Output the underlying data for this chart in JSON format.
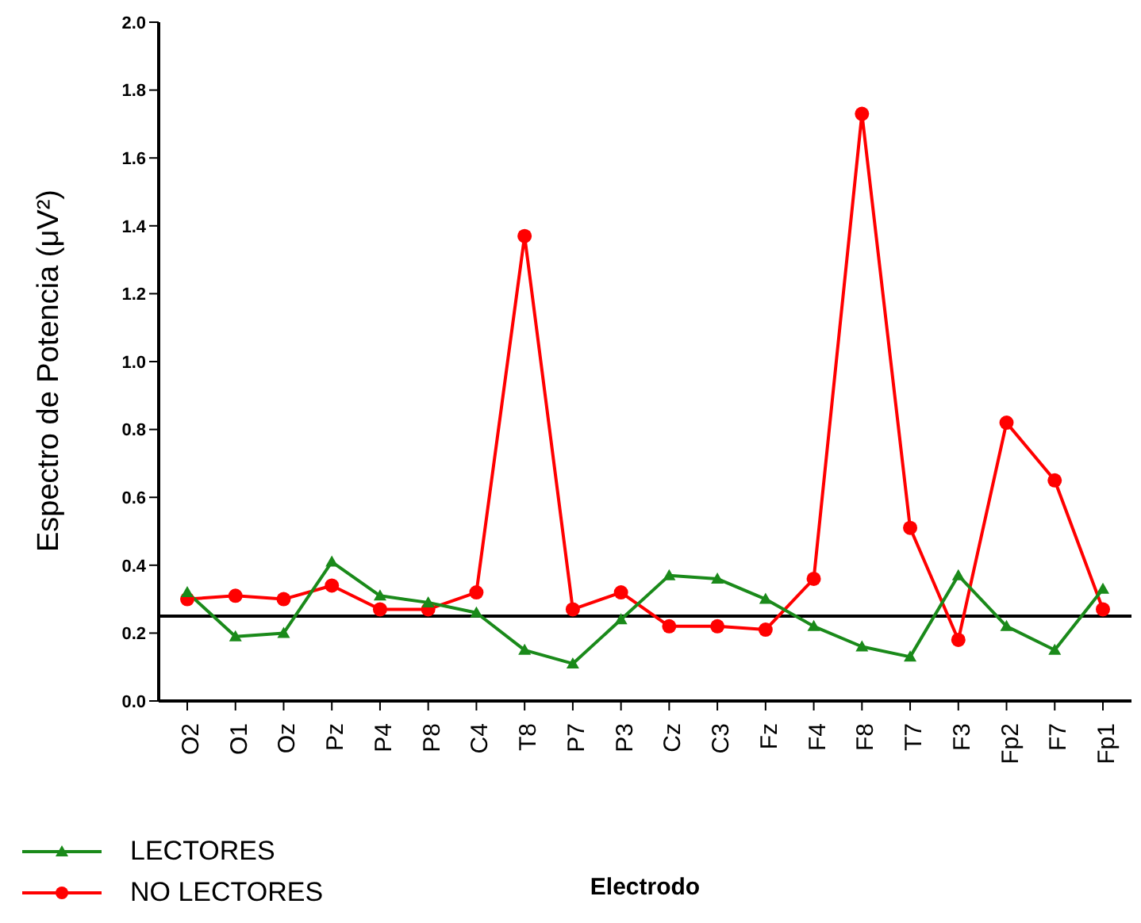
{
  "chart_data": {
    "type": "line",
    "xlabel": "Electrodo",
    "ylabel": "Espectro de Potencia (μV²)",
    "categories": [
      "O2",
      "O1",
      "Oz",
      "Pz",
      "P4",
      "P8",
      "C4",
      "T8",
      "P7",
      "P3",
      "Cz",
      "C3",
      "Fz",
      "F4",
      "F8",
      "T7",
      "F3",
      "Fp2",
      "F7",
      "Fp1"
    ],
    "series": [
      {
        "name": "LECTORES",
        "color": "#1a8a1a",
        "marker": "triangle",
        "values": [
          0.32,
          0.19,
          0.2,
          0.41,
          0.31,
          0.29,
          0.26,
          0.15,
          0.11,
          0.24,
          0.37,
          0.36,
          0.3,
          0.22,
          0.16,
          0.13,
          0.37,
          0.22,
          0.15,
          0.33
        ]
      },
      {
        "name": "NO LECTORES",
        "color": "#ff0000",
        "marker": "circle",
        "values": [
          0.3,
          0.31,
          0.3,
          0.34,
          0.27,
          0.27,
          0.32,
          1.37,
          0.27,
          0.32,
          0.22,
          0.22,
          0.21,
          0.36,
          1.73,
          0.51,
          0.18,
          0.82,
          0.65,
          0.27
        ]
      }
    ],
    "ylim": [
      0,
      2
    ],
    "yticks": [
      {
        "value": 0,
        "label": "0.0"
      },
      {
        "value": 0.2,
        "label": "0.2"
      },
      {
        "value": 0.4,
        "label": "0.4"
      },
      {
        "value": 0.6,
        "label": "0.6"
      },
      {
        "value": 0.8,
        "label": "0.8"
      },
      {
        "value": 1,
        "label": "1.0"
      },
      {
        "value": 1.2,
        "label": "1.2"
      },
      {
        "value": 1.4,
        "label": "1.4"
      },
      {
        "value": 1.6,
        "label": "1.6"
      },
      {
        "value": 1.8,
        "label": "1.8"
      },
      {
        "value": 2,
        "label": "2.0"
      }
    ],
    "ref_lines": [
      {
        "axis": "y",
        "value": 0.25,
        "color": "#000000"
      }
    ],
    "legend": "bottom left",
    "grid": false
  }
}
